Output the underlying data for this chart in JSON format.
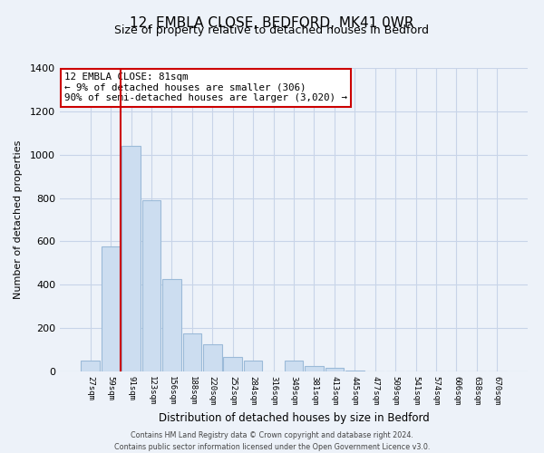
{
  "title": "12, EMBLA CLOSE, BEDFORD, MK41 0WR",
  "subtitle": "Size of property relative to detached houses in Bedford",
  "xlabel": "Distribution of detached houses by size in Bedford",
  "ylabel": "Number of detached properties",
  "bar_labels": [
    "27sqm",
    "59sqm",
    "91sqm",
    "123sqm",
    "156sqm",
    "188sqm",
    "220sqm",
    "252sqm",
    "284sqm",
    "316sqm",
    "349sqm",
    "381sqm",
    "413sqm",
    "445sqm",
    "477sqm",
    "509sqm",
    "541sqm",
    "574sqm",
    "606sqm",
    "638sqm",
    "670sqm"
  ],
  "bar_values": [
    50,
    575,
    1040,
    790,
    425,
    175,
    125,
    65,
    50,
    0,
    50,
    25,
    15,
    5,
    0,
    0,
    0,
    0,
    0,
    0,
    0
  ],
  "bar_color": "#ccddf0",
  "bar_edge_color": "#9bbad8",
  "marker_color": "#cc0000",
  "ylim": [
    0,
    1400
  ],
  "yticks": [
    0,
    200,
    400,
    600,
    800,
    1000,
    1200,
    1400
  ],
  "annotation_line1": "12 EMBLA CLOSE: 81sqm",
  "annotation_line2": "← 9% of detached houses are smaller (306)",
  "annotation_line3": "90% of semi-detached houses are larger (3,020) →",
  "annotation_box_color": "#ffffff",
  "annotation_box_edge": "#cc0000",
  "footer_line1": "Contains HM Land Registry data © Crown copyright and database right 2024.",
  "footer_line2": "Contains public sector information licensed under the Open Government Licence v3.0.",
  "background_color": "#edf2f9",
  "grid_color": "#c8d4e8",
  "title_fontsize": 11,
  "subtitle_fontsize": 9
}
